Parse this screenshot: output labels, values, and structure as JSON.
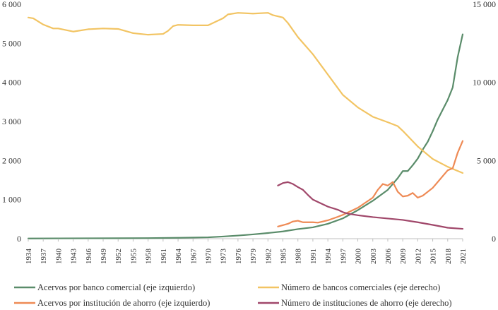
{
  "chart_data": {
    "type": "line",
    "title": "",
    "x": [
      1934,
      1937,
      1940,
      1943,
      1946,
      1949,
      1952,
      1955,
      1958,
      1961,
      1964,
      1967,
      1970,
      1973,
      1976,
      1979,
      1982,
      1985,
      1988,
      1991,
      1994,
      1997,
      2000,
      2003,
      2006,
      2009,
      2012,
      2015,
      2018,
      2021
    ],
    "x_tick_labels": [
      "1934",
      "1937",
      "1940",
      "1943",
      "1946",
      "1949",
      "1952",
      "1955",
      "1958",
      "1961",
      "1964",
      "1967",
      "1970",
      "1973",
      "1976",
      "1979",
      "1982",
      "1985",
      "1988",
      "1991",
      "1994",
      "1997",
      "2000",
      "2003",
      "2006",
      "2009",
      "2012",
      "2015",
      "2018",
      "2021"
    ],
    "y_left": {
      "ylim": [
        0,
        6000
      ],
      "ticks": [
        0,
        1000,
        2000,
        3000,
        4000,
        5000,
        6000
      ],
      "tick_labels": [
        "0",
        "1 000",
        "2 000",
        "3 000",
        "4 000",
        "5 000",
        "6 000"
      ]
    },
    "y_right": {
      "ylim": [
        0,
        15000
      ],
      "ticks": [
        0,
        5000,
        10000,
        15000
      ],
      "tick_labels": [
        "0",
        "5 000",
        "10 000",
        "15 000"
      ]
    },
    "colors": {
      "green": "#5a8c6a",
      "yellow": "#f2c463",
      "orange": "#ee8a55",
      "purple": "#a0476a",
      "axis": "#bfbfbf"
    },
    "series": [
      {
        "name": "Acervos por banco comercial (eje izquierdo)",
        "axis": "left",
        "color": "#5a8c6a",
        "points": [
          [
            1934,
            5
          ],
          [
            1940,
            8
          ],
          [
            1946,
            10
          ],
          [
            1952,
            12
          ],
          [
            1958,
            15
          ],
          [
            1964,
            22
          ],
          [
            1970,
            35
          ],
          [
            1973,
            55
          ],
          [
            1976,
            80
          ],
          [
            1979,
            110
          ],
          [
            1982,
            145
          ],
          [
            1985,
            185
          ],
          [
            1988,
            245
          ],
          [
            1991,
            290
          ],
          [
            1994,
            380
          ],
          [
            1997,
            520
          ],
          [
            2000,
            730
          ],
          [
            2003,
            970
          ],
          [
            2006,
            1250
          ],
          [
            2008,
            1550
          ],
          [
            2009,
            1730
          ],
          [
            2010,
            1730
          ],
          [
            2011,
            1880
          ],
          [
            2012,
            2050
          ],
          [
            2013,
            2280
          ],
          [
            2014,
            2480
          ],
          [
            2015,
            2750
          ],
          [
            2016,
            3050
          ],
          [
            2017,
            3300
          ],
          [
            2018,
            3550
          ],
          [
            2019,
            3870
          ],
          [
            2020,
            4650
          ],
          [
            2021,
            5230
          ]
        ]
      },
      {
        "name": "Número de bancos comerciales (eje derecho)",
        "axis": "right",
        "color": "#f2c463",
        "points": [
          [
            1934,
            14150
          ],
          [
            1935,
            14100
          ],
          [
            1937,
            13700
          ],
          [
            1939,
            13450
          ],
          [
            1940,
            13450
          ],
          [
            1943,
            13250
          ],
          [
            1946,
            13400
          ],
          [
            1949,
            13450
          ],
          [
            1952,
            13420
          ],
          [
            1955,
            13150
          ],
          [
            1958,
            13050
          ],
          [
            1961,
            13100
          ],
          [
            1962,
            13300
          ],
          [
            1963,
            13600
          ],
          [
            1964,
            13680
          ],
          [
            1967,
            13650
          ],
          [
            1970,
            13650
          ],
          [
            1973,
            14100
          ],
          [
            1974,
            14350
          ],
          [
            1976,
            14450
          ],
          [
            1979,
            14400
          ],
          [
            1982,
            14450
          ],
          [
            1983,
            14300
          ],
          [
            1985,
            14150
          ],
          [
            1986,
            13800
          ],
          [
            1988,
            12900
          ],
          [
            1991,
            11800
          ],
          [
            1994,
            10500
          ],
          [
            1997,
            9200
          ],
          [
            2000,
            8400
          ],
          [
            2003,
            7800
          ],
          [
            2006,
            7450
          ],
          [
            2008,
            7200
          ],
          [
            2009,
            6900
          ],
          [
            2012,
            5900
          ],
          [
            2015,
            5100
          ],
          [
            2018,
            4600
          ],
          [
            2021,
            4200
          ]
        ]
      },
      {
        "name": "Acervos por institución de ahorro (eje izquierdo)",
        "axis": "left",
        "color": "#ee8a55",
        "points": [
          [
            1984,
            310
          ],
          [
            1986,
            380
          ],
          [
            1987,
            440
          ],
          [
            1988,
            460
          ],
          [
            1989,
            420
          ],
          [
            1991,
            420
          ],
          [
            1992,
            410
          ],
          [
            1994,
            470
          ],
          [
            1996,
            560
          ],
          [
            1997,
            610
          ],
          [
            2000,
            790
          ],
          [
            2003,
            1050
          ],
          [
            2004,
            1250
          ],
          [
            2005,
            1400
          ],
          [
            2006,
            1360
          ],
          [
            2007,
            1450
          ],
          [
            2008,
            1200
          ],
          [
            2009,
            1080
          ],
          [
            2010,
            1100
          ],
          [
            2011,
            1170
          ],
          [
            2012,
            1050
          ],
          [
            2013,
            1100
          ],
          [
            2015,
            1300
          ],
          [
            2017,
            1600
          ],
          [
            2018,
            1750
          ],
          [
            2019,
            1800
          ],
          [
            2020,
            2200
          ],
          [
            2021,
            2500
          ]
        ]
      },
      {
        "name": "Número de instituciones de ahorro (eje derecho)",
        "axis": "right",
        "color": "#a0476a",
        "points": [
          [
            1984,
            3400
          ],
          [
            1985,
            3560
          ],
          [
            1986,
            3620
          ],
          [
            1987,
            3500
          ],
          [
            1988,
            3300
          ],
          [
            1989,
            3130
          ],
          [
            1990,
            2800
          ],
          [
            1991,
            2500
          ],
          [
            1992,
            2350
          ],
          [
            1994,
            2050
          ],
          [
            1996,
            1850
          ],
          [
            1997,
            1700
          ],
          [
            1998,
            1600
          ],
          [
            2000,
            1500
          ],
          [
            2003,
            1380
          ],
          [
            2006,
            1290
          ],
          [
            2009,
            1200
          ],
          [
            2012,
            1050
          ],
          [
            2015,
            880
          ],
          [
            2018,
            700
          ],
          [
            2021,
            630
          ]
        ]
      }
    ],
    "legend": [
      "Acervos por banco comercial (eje izquierdo)",
      "Número de bancos comerciales (eje derecho)",
      "Acervos por institución de ahorro (eje izquierdo)",
      "Número de instituciones de ahorro (eje derecho)"
    ]
  }
}
